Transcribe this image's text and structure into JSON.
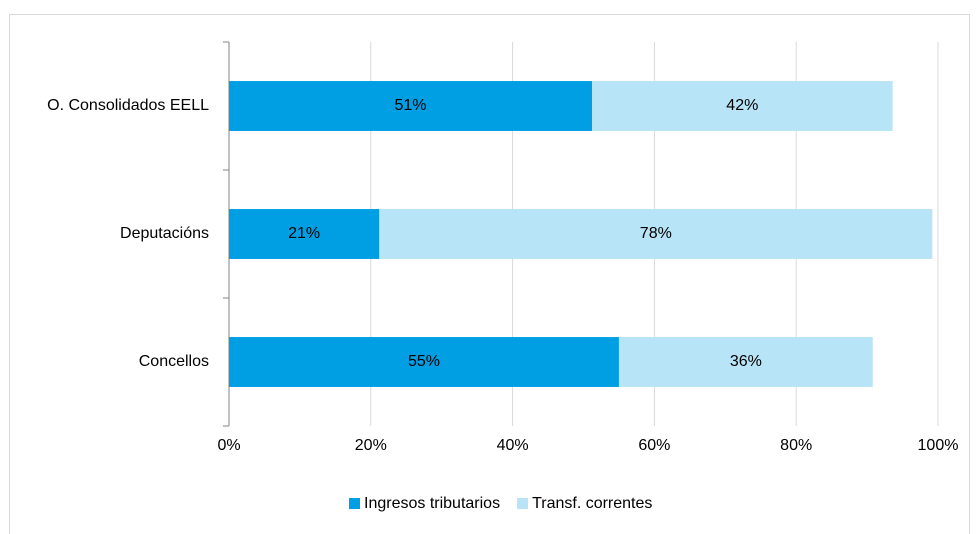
{
  "chart_data": {
    "type": "stacked_barh",
    "categories": [
      "O. Consolidados EELL",
      "Deputacións",
      "Concellos"
    ],
    "series": [
      {
        "name": "Ingresos tributarios",
        "color": "#009fe3",
        "values": [
          51.2,
          21.2,
          55.0
        ],
        "value_labels": [
          "51%",
          "21%",
          "55%"
        ]
      },
      {
        "name": "Transf. correntes",
        "color": "#b8e4f7",
        "values": [
          42.4,
          78.0,
          35.8
        ],
        "value_labels": [
          "42%",
          "78%",
          "36%"
        ]
      }
    ],
    "xlim": [
      0,
      100
    ],
    "xticks": [
      {
        "value": 0,
        "label": "0%"
      },
      {
        "value": 20,
        "label": "20%"
      },
      {
        "value": 40,
        "label": "40%"
      },
      {
        "value": 60,
        "label": "60%"
      },
      {
        "value": 80,
        "label": "80%"
      },
      {
        "value": 100,
        "label": "100%"
      }
    ],
    "grid": true,
    "legend": "bottom"
  }
}
